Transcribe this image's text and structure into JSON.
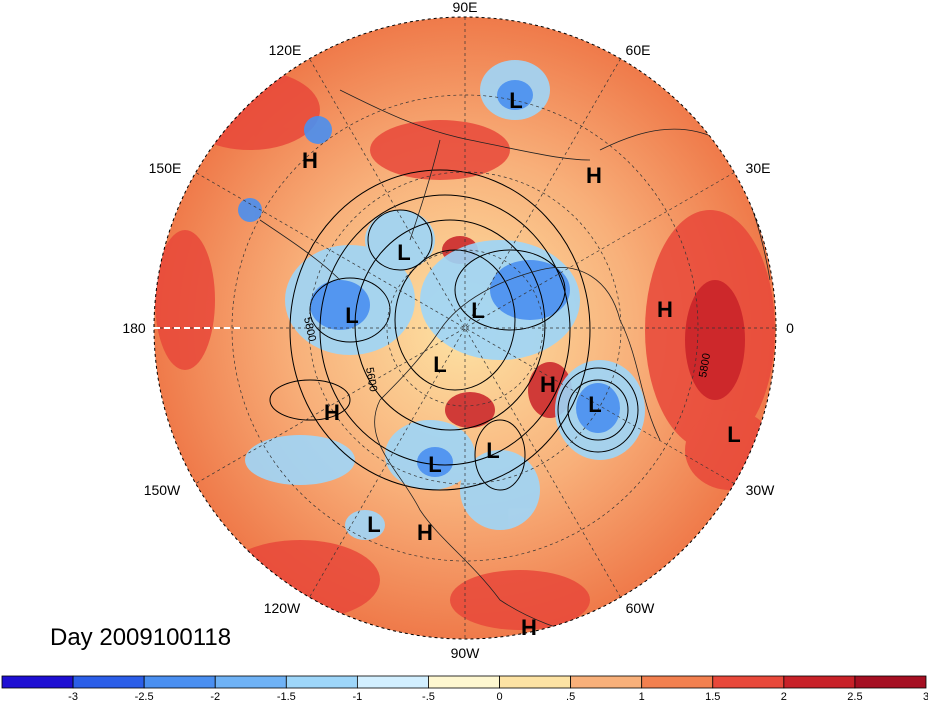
{
  "map": {
    "type": "polar-stereographic",
    "hemisphere": "north",
    "date_label": "Day 2009100118",
    "longitude_labels": [
      "90E",
      "60E",
      "30E",
      "0",
      "30W",
      "60W",
      "90W",
      "120W",
      "150W",
      "180",
      "150E",
      "120E"
    ],
    "pressure_systems": [
      {
        "label": "L"
      },
      {
        "label": "H"
      },
      {
        "label": "H"
      },
      {
        "label": "L"
      },
      {
        "label": "L"
      },
      {
        "label": "L"
      },
      {
        "label": "H"
      },
      {
        "label": "L"
      },
      {
        "label": "H"
      },
      {
        "label": "L"
      },
      {
        "label": "H"
      },
      {
        "label": "L"
      },
      {
        "label": "L"
      },
      {
        "label": "L"
      },
      {
        "label": "H"
      },
      {
        "label": "L"
      },
      {
        "label": "H"
      }
    ],
    "contour_labels": [
      "5800",
      "5600",
      "5800"
    ]
  },
  "colorbar": {
    "colors": [
      "#1e0fd2",
      "#2b5ee8",
      "#4a8ff0",
      "#6fb2f5",
      "#9ed6f9",
      "#d2efff",
      "#fef7d0",
      "#fde3a4",
      "#f8b07a",
      "#f2804f",
      "#e8483a",
      "#c82128",
      "#a50f22"
    ],
    "tick_labels": [
      "-3",
      "-2.5",
      "-2",
      "-1.5",
      "-1",
      "-.5",
      "0",
      ".5",
      "1",
      "1.5",
      "2",
      "2.5",
      "3"
    ]
  }
}
